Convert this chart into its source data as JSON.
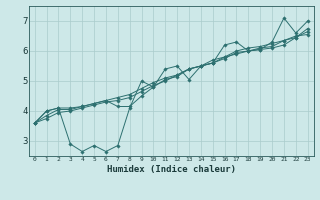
{
  "xlabel": "Humidex (Indice chaleur)",
  "ylabel": "",
  "bg_color": "#cde8e8",
  "line_color": "#2d7070",
  "grid_color": "#aacccc",
  "xlim": [
    -0.5,
    23.5
  ],
  "ylim": [
    2.5,
    7.5
  ],
  "xticks": [
    0,
    1,
    2,
    3,
    4,
    5,
    6,
    7,
    8,
    9,
    10,
    11,
    12,
    13,
    14,
    15,
    16,
    17,
    18,
    19,
    20,
    21,
    22,
    23
  ],
  "yticks": [
    3,
    4,
    5,
    6,
    7
  ],
  "series": [
    [
      3.6,
      4.0,
      4.1,
      2.9,
      2.65,
      2.85,
      2.65,
      2.85,
      4.1,
      5.0,
      4.8,
      5.4,
      5.5,
      5.05,
      5.5,
      5.6,
      6.2,
      6.3,
      6.0,
      6.05,
      6.3,
      7.1,
      6.6,
      7.0
    ],
    [
      3.6,
      4.0,
      4.1,
      4.1,
      4.15,
      4.25,
      4.35,
      4.15,
      4.15,
      4.5,
      4.8,
      5.05,
      5.15,
      5.4,
      5.5,
      5.6,
      5.8,
      6.0,
      6.1,
      6.15,
      6.25,
      6.35,
      6.5,
      6.55
    ],
    [
      3.6,
      3.85,
      4.05,
      4.05,
      4.15,
      4.25,
      4.35,
      4.45,
      4.55,
      4.75,
      4.95,
      5.1,
      5.2,
      5.4,
      5.5,
      5.6,
      5.75,
      5.95,
      6.0,
      6.1,
      6.15,
      6.35,
      6.45,
      6.75
    ],
    [
      3.6,
      3.75,
      3.95,
      4.0,
      4.1,
      4.2,
      4.3,
      4.35,
      4.45,
      4.65,
      4.85,
      5.0,
      5.2,
      5.4,
      5.5,
      5.7,
      5.8,
      5.9,
      6.0,
      6.05,
      6.1,
      6.2,
      6.45,
      6.65
    ]
  ]
}
